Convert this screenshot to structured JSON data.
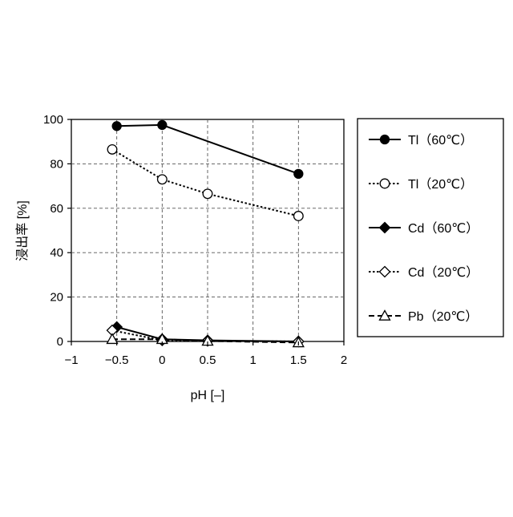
{
  "chart_data": {
    "type": "line",
    "xlabel": "pH [–]",
    "ylabel": "浸出率 [%]",
    "xlim": [
      -1,
      2
    ],
    "ylim": [
      0,
      100
    ],
    "xticks": [
      "−1",
      "−0.5",
      "0",
      "0.5",
      "1",
      "1.5",
      "2"
    ],
    "xtick_values": [
      -1,
      -0.5,
      0,
      0.5,
      1,
      1.5,
      2
    ],
    "yticks": [
      "0",
      "20",
      "40",
      "60",
      "80",
      "100"
    ],
    "ytick_values": [
      0,
      20,
      40,
      60,
      80,
      100
    ],
    "grid": true,
    "legend_position": "right",
    "series": [
      {
        "name": "Tl（60℃）",
        "marker": "circle-filled",
        "line": "solid",
        "x": [
          -0.5,
          0,
          1.5
        ],
        "y": [
          97,
          97.5,
          75.5
        ]
      },
      {
        "name": "Tl（20℃）",
        "marker": "circle-open",
        "line": "dotted",
        "x": [
          -0.55,
          0,
          0.5,
          1.5
        ],
        "y": [
          86.5,
          73,
          66.5,
          56.5
        ]
      },
      {
        "name": "Cd（60℃）",
        "marker": "diamond-filled",
        "line": "solid",
        "x": [
          -0.5,
          0,
          0.5,
          1.5
        ],
        "y": [
          6.5,
          1,
          0.5,
          0
        ]
      },
      {
        "name": "Cd（20℃）",
        "marker": "diamond-open",
        "line": "dotted",
        "x": [
          -0.55,
          0,
          0.5,
          1.5
        ],
        "y": [
          5,
          0.5,
          0.3,
          0
        ]
      },
      {
        "name": "Pb（20℃）",
        "marker": "triangle-open",
        "line": "dashed",
        "x": [
          -0.55,
          0,
          0.5,
          1.5
        ],
        "y": [
          1,
          1,
          0.2,
          -0.5
        ]
      }
    ]
  }
}
